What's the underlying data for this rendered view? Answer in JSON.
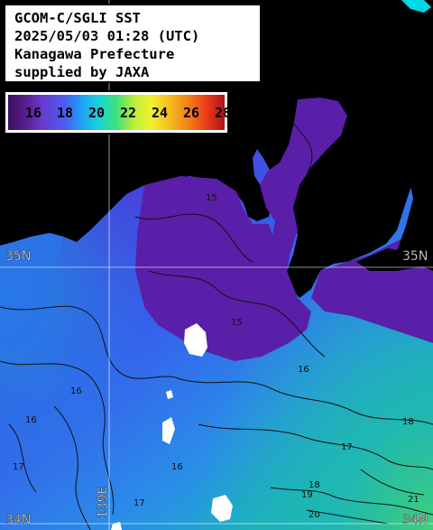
{
  "title": {
    "line1": "GCOM-C/SGLI SST",
    "line2": "2025/05/03 01:28 (UTC)",
    "line3": "Kanagawa Prefecture",
    "line4": "supplied by JAXA"
  },
  "legend": {
    "ticks": [
      "16",
      "18",
      "20",
      "22",
      "24",
      "26",
      "28"
    ]
  },
  "coords": {
    "lat35_left": "35N",
    "lat35_right": "35N",
    "lat34_left": "34N",
    "lat34_right": "34N",
    "lon139": "139E"
  },
  "contour_labels": [
    "15",
    "15",
    "16",
    "16",
    "16",
    "16",
    "17",
    "17",
    "17",
    "18",
    "18",
    "19",
    "20",
    "21"
  ],
  "colors": {
    "land": "#000000",
    "sst_16": "#5a2bc8",
    "sst_18": "#3a6ff0",
    "sst_20": "#1fb8c8",
    "sst_22": "#3ee07a",
    "grid": "#ffffff"
  }
}
